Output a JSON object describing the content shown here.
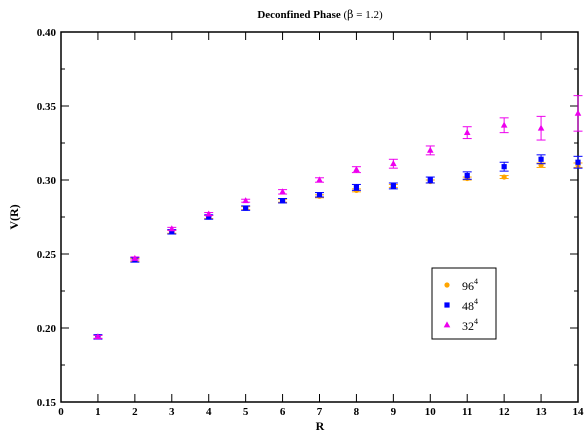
{
  "chart_data": {
    "type": "scatter",
    "title": "Deconfined Phase (β = 1.2)",
    "title_parts": {
      "main": "Deconfined Phase",
      "paren_open": "(",
      "beta": "β",
      "rest": " = 1.2)"
    },
    "xlabel": "R",
    "ylabel": "V(R)",
    "xlim": [
      0,
      14
    ],
    "ylim": [
      0.15,
      0.4
    ],
    "x_ticks": [
      "0",
      "1",
      "2",
      "3",
      "4",
      "5",
      "6",
      "7",
      "8",
      "9",
      "10",
      "11",
      "12",
      "13",
      "14"
    ],
    "y_ticks": [
      "0.15",
      "0.20",
      "0.25",
      "0.30",
      "0.35",
      "0.40"
    ],
    "legend_position": "lower-right",
    "series": [
      {
        "name": "96",
        "sup": "4",
        "color": "#ffa500",
        "marker": "circle",
        "points": [
          {
            "x": 1,
            "y": 0.194,
            "err": 0.001
          },
          {
            "x": 2,
            "y": 0.246,
            "err": 0.001
          },
          {
            "x": 3,
            "y": 0.265,
            "err": 0.001
          },
          {
            "x": 4,
            "y": 0.275,
            "err": 0.001
          },
          {
            "x": 5,
            "y": 0.281,
            "err": 0.001
          },
          {
            "x": 6,
            "y": 0.286,
            "err": 0.001
          },
          {
            "x": 7,
            "y": 0.289,
            "err": 0.001
          },
          {
            "x": 8,
            "y": 0.293,
            "err": 0.001
          },
          {
            "x": 9,
            "y": 0.296,
            "err": 0.001
          },
          {
            "x": 10,
            "y": 0.299,
            "err": 0.001
          },
          {
            "x": 11,
            "y": 0.301,
            "err": 0.001
          },
          {
            "x": 12,
            "y": 0.302,
            "err": 0.001
          },
          {
            "x": 13,
            "y": 0.31,
            "err": 0.0015
          },
          {
            "x": 14,
            "y": 0.31,
            "err": 0.0015
          }
        ]
      },
      {
        "name": "48",
        "sup": "4",
        "color": "#0000ff",
        "marker": "square",
        "points": [
          {
            "x": 1,
            "y": 0.194,
            "err": 0.0015
          },
          {
            "x": 2,
            "y": 0.246,
            "err": 0.0015
          },
          {
            "x": 3,
            "y": 0.265,
            "err": 0.0015
          },
          {
            "x": 4,
            "y": 0.275,
            "err": 0.0015
          },
          {
            "x": 5,
            "y": 0.281,
            "err": 0.0015
          },
          {
            "x": 6,
            "y": 0.286,
            "err": 0.0015
          },
          {
            "x": 7,
            "y": 0.29,
            "err": 0.0015
          },
          {
            "x": 8,
            "y": 0.295,
            "err": 0.002
          },
          {
            "x": 9,
            "y": 0.296,
            "err": 0.002
          },
          {
            "x": 10,
            "y": 0.3,
            "err": 0.002
          },
          {
            "x": 11,
            "y": 0.303,
            "err": 0.0025
          },
          {
            "x": 12,
            "y": 0.309,
            "err": 0.003
          },
          {
            "x": 13,
            "y": 0.314,
            "err": 0.003
          },
          {
            "x": 14,
            "y": 0.312,
            "err": 0.004
          }
        ]
      },
      {
        "name": "32",
        "sup": "4",
        "color": "#ee00ee",
        "marker": "triangle",
        "points": [
          {
            "x": 1,
            "y": 0.194,
            "err": 0.001
          },
          {
            "x": 2,
            "y": 0.247,
            "err": 0.001
          },
          {
            "x": 3,
            "y": 0.267,
            "err": 0.001
          },
          {
            "x": 4,
            "y": 0.277,
            "err": 0.001
          },
          {
            "x": 5,
            "y": 0.286,
            "err": 0.001
          },
          {
            "x": 6,
            "y": 0.292,
            "err": 0.0015
          },
          {
            "x": 7,
            "y": 0.3,
            "err": 0.0015
          },
          {
            "x": 8,
            "y": 0.307,
            "err": 0.002
          },
          {
            "x": 9,
            "y": 0.311,
            "err": 0.003
          },
          {
            "x": 10,
            "y": 0.32,
            "err": 0.003
          },
          {
            "x": 11,
            "y": 0.332,
            "err": 0.004
          },
          {
            "x": 12,
            "y": 0.337,
            "err": 0.005
          },
          {
            "x": 13,
            "y": 0.335,
            "err": 0.008
          },
          {
            "x": 14,
            "y": 0.345,
            "err": 0.012
          }
        ]
      }
    ]
  }
}
